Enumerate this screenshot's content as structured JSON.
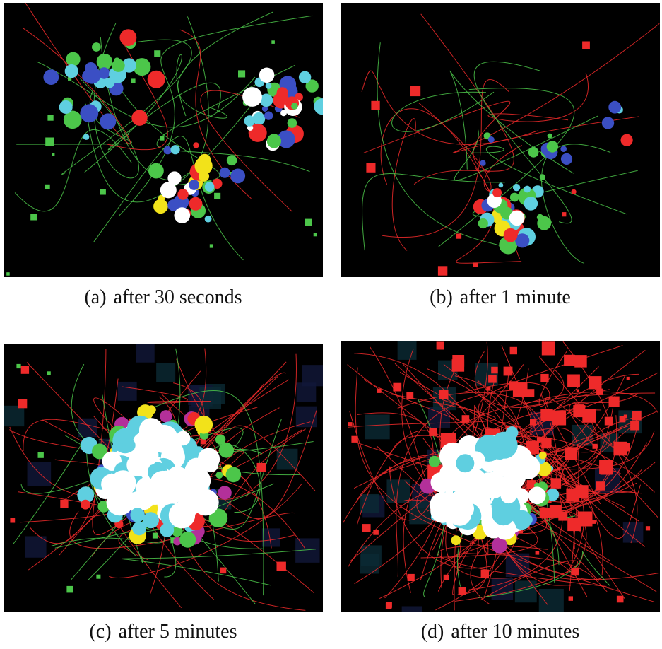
{
  "panels": [
    {
      "label": "(a)",
      "caption": "after 30 seconds"
    },
    {
      "label": "(b)",
      "caption": "after 1 minute"
    },
    {
      "label": "(c)",
      "caption": "after 5 minutes"
    },
    {
      "label": "(d)",
      "caption": "after 10 minutes"
    }
  ],
  "colors": {
    "background": "#000000",
    "red": "#ee2a2a",
    "green": "#4cc64a",
    "blue": "#3b4fc4",
    "cyan": "#5fcfe0",
    "white": "#ffffff",
    "yellow": "#f2e21a",
    "magenta": "#b3309a"
  }
}
